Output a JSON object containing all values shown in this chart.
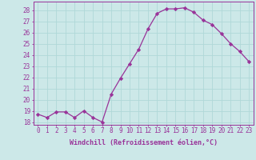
{
  "x": [
    0,
    1,
    2,
    3,
    4,
    5,
    6,
    7,
    8,
    9,
    10,
    11,
    12,
    13,
    14,
    15,
    16,
    17,
    18,
    19,
    20,
    21,
    22,
    23
  ],
  "y": [
    18.7,
    18.4,
    18.9,
    18.9,
    18.4,
    19.0,
    18.4,
    18.0,
    20.5,
    21.9,
    23.2,
    24.5,
    26.3,
    27.7,
    28.1,
    28.1,
    28.2,
    27.8,
    27.1,
    26.7,
    25.9,
    25.0,
    24.3,
    23.4
  ],
  "line_color": "#993399",
  "marker": "D",
  "marker_size": 2.2,
  "bg_color": "#cce8e8",
  "grid_color": "#b0d8d8",
  "xlabel": "Windchill (Refroidissement éolien,°C)",
  "ylabel_ticks": [
    18,
    19,
    20,
    21,
    22,
    23,
    24,
    25,
    26,
    27,
    28
  ],
  "xlim": [
    -0.5,
    23.5
  ],
  "ylim": [
    17.75,
    28.75
  ],
  "tick_fontsize": 5.5,
  "xlabel_fontsize": 6.0
}
